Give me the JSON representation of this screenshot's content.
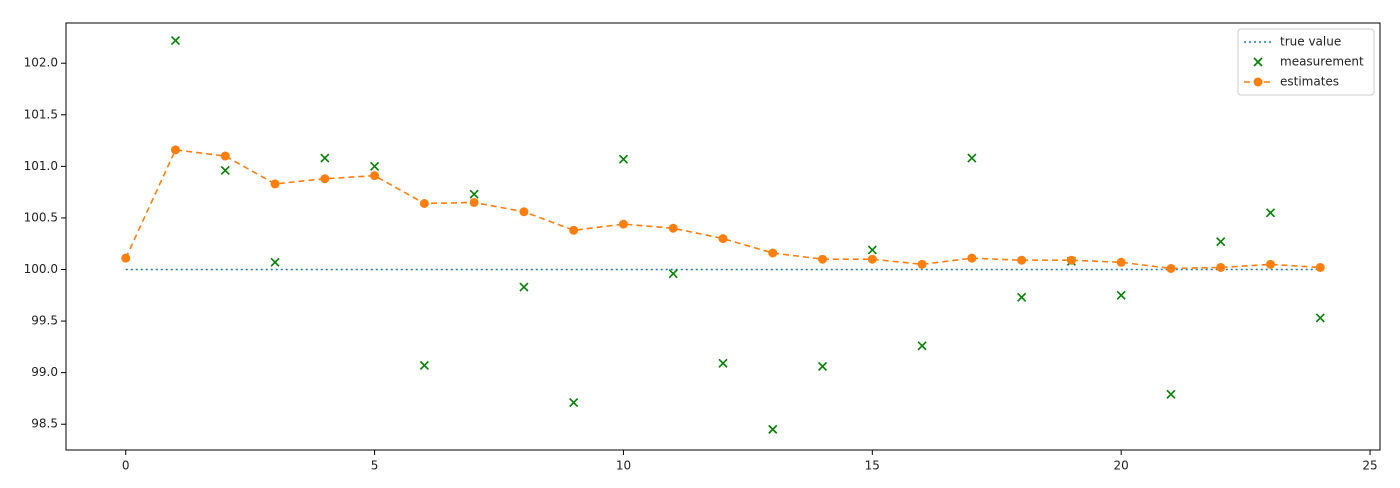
{
  "chart_data": {
    "type": "line",
    "xlim": [
      -1.2,
      25.2
    ],
    "xticks": [
      0,
      5,
      10,
      15,
      20,
      25
    ],
    "ylim": [
      98.25,
      102.39
    ],
    "yticks": [
      {
        "value": 98.5,
        "label": "98.5"
      },
      {
        "value": 99.0,
        "label": "99.0"
      },
      {
        "value": 99.5,
        "label": "99.5"
      },
      {
        "value": 100.0,
        "label": "100.0"
      },
      {
        "value": 100.5,
        "label": "100.5"
      },
      {
        "value": 101.0,
        "label": "101.0"
      },
      {
        "value": 101.5,
        "label": "101.5"
      },
      {
        "value": 102.0,
        "label": "102.0"
      }
    ],
    "legend": "upper right",
    "series": [
      {
        "name": "true value",
        "color": "#1f77b4",
        "linestyle": "dotted",
        "marker": "none",
        "x": [
          0,
          24
        ],
        "values": [
          100.0,
          100.0
        ]
      },
      {
        "name": "measurement",
        "color": "#008000",
        "linestyle": "none",
        "marker": "x",
        "x": [
          1,
          2,
          3,
          4,
          5,
          6,
          7,
          8,
          9,
          10,
          11,
          12,
          13,
          14,
          15,
          16,
          17,
          18,
          19,
          20,
          21,
          22,
          23,
          24
        ],
        "values": [
          102.22,
          100.96,
          100.07,
          101.08,
          101.0,
          99.07,
          100.73,
          99.83,
          98.71,
          101.07,
          99.96,
          99.09,
          98.45,
          99.06,
          100.19,
          99.26,
          101.08,
          99.73,
          100.08,
          99.75,
          98.79,
          100.27,
          100.55,
          99.53
        ]
      },
      {
        "name": "estimates",
        "color": "#ff7f0e",
        "linestyle": "dashed",
        "marker": "circle",
        "x": [
          0,
          1,
          2,
          3,
          4,
          5,
          6,
          7,
          8,
          9,
          10,
          11,
          12,
          13,
          14,
          15,
          16,
          17,
          18,
          19,
          20,
          21,
          22,
          23,
          24
        ],
        "values": [
          100.11,
          101.16,
          101.1,
          100.83,
          100.88,
          100.91,
          100.64,
          100.65,
          100.56,
          100.38,
          100.44,
          100.4,
          100.3,
          100.16,
          100.1,
          100.1,
          100.05,
          100.11,
          100.09,
          100.09,
          100.07,
          100.01,
          100.02,
          100.05,
          100.02
        ]
      }
    ]
  }
}
